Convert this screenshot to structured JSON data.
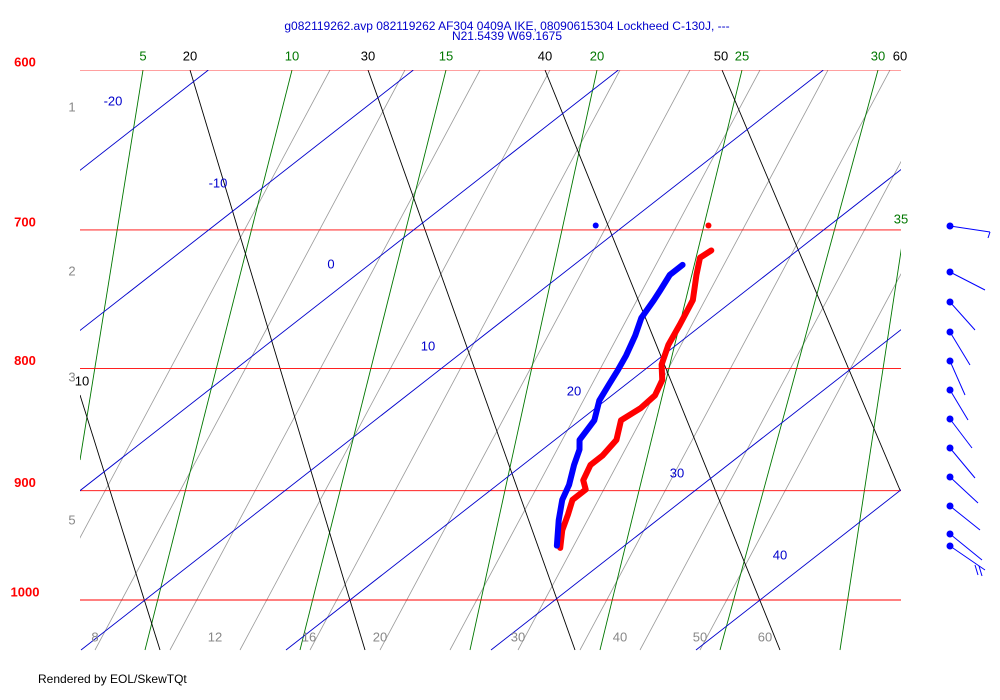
{
  "chart_data": {
    "type": "skewt",
    "title": "g082119262.avp 082119262 AF304 0409A IKE, 08090615304 Lockheed C-130J, ---",
    "subtitle": "N21.5439 W69.1675",
    "pressure_levels": [
      600,
      700,
      800,
      900,
      1000
    ],
    "isotherms": [
      -20,
      -10,
      0,
      10,
      20,
      30,
      40
    ],
    "dry_adiabats": [
      10,
      20,
      30,
      40,
      50,
      60
    ],
    "moist_adiabats": [
      5,
      10,
      15,
      20,
      25,
      30,
      35
    ],
    "mixing_ratios": [
      8,
      12,
      16,
      20,
      30,
      40,
      50,
      60
    ],
    "heights_km": [
      1,
      2,
      3,
      5
    ],
    "series": [
      {
        "name": "temperature",
        "color": "#ff0000",
        "pressure": [
          714,
          719,
          731,
          749,
          767,
          782,
          797,
          809,
          821,
          831,
          841,
          857,
          870,
          878,
          891,
          899,
          908,
          921,
          935,
          951
        ],
        "values": [
          15.8,
          15.7,
          16.6,
          18.0,
          18.9,
          19.6,
          20.5,
          21.5,
          22.1,
          22.2,
          22.0,
          23.0,
          23.3,
          23.3,
          23.9,
          24.6,
          24.6,
          25.3,
          26.0,
          27.0
        ],
        "flight_level": {
          "pressure": 697,
          "value": 14.1
        }
      },
      {
        "name": "dewpoint",
        "color": "#0000ff",
        "pressure": [
          724,
          731,
          742,
          749,
          762,
          775,
          790,
          801,
          813,
          825,
          841,
          857,
          865,
          878,
          895,
          908,
          926,
          949
        ],
        "values": [
          15.3,
          15.3,
          15.8,
          16.1,
          16.6,
          17.4,
          18.2,
          18.7,
          19.2,
          19.7,
          20.7,
          21.2,
          21.8,
          22.5,
          23.5,
          24.1,
          25.2,
          26.7
        ],
        "flight_level": {
          "pressure": 697,
          "value": 8.6
        }
      }
    ]
  },
  "footer": "Rendered by EOL/SkewTQt"
}
